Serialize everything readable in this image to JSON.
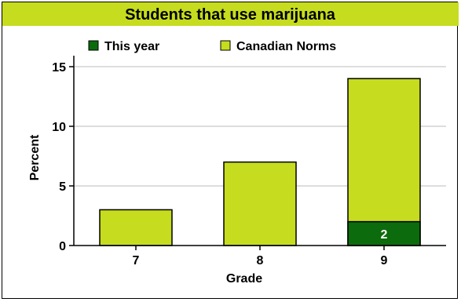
{
  "chart_data": {
    "type": "bar",
    "title": "Students that use marijuana",
    "xlabel": "Grade",
    "ylabel": "Percent",
    "categories": [
      "7",
      "8",
      "9"
    ],
    "ylim": [
      0,
      15
    ],
    "yticks": [
      0,
      5,
      10,
      15
    ],
    "grid": true,
    "legend_position": "top",
    "series": [
      {
        "name": "Canadian Norms",
        "color": "#c6dc1e",
        "values": [
          3,
          7,
          14
        ]
      },
      {
        "name": "This year",
        "color": "#0c6b0c",
        "values": [
          null,
          null,
          2
        ]
      }
    ],
    "legend": [
      {
        "name": "This year",
        "color": "#0c6b0c"
      },
      {
        "name": "Canadian Norms",
        "color": "#c6dc1e"
      }
    ],
    "data_labels": [
      {
        "series": "This year",
        "category": "9",
        "text": "2"
      }
    ],
    "colors": {
      "title_band": "#c6dc1e",
      "grid": "#bbbbbb",
      "axis": "#000000"
    }
  }
}
